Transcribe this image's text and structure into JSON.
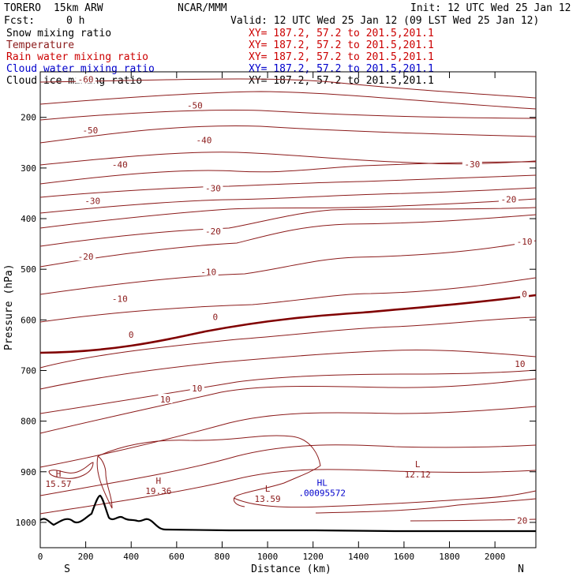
{
  "header": {
    "model": "TORERO",
    "resolution": "15km ARW",
    "org": "NCAR/MMM",
    "init": "Init: 12 UTC Wed 25 Jan 12",
    "fcst_label": "Fcst:",
    "fcst_value": "0 h",
    "valid": "Valid: 12 UTC Wed 25 Jan 12 (09 LST Wed 25 Jan 12)"
  },
  "legend": [
    {
      "name": "Snow mixing ratio",
      "color": "#000000",
      "xy": "XY= 187.2, 57.2 to 201.5,201.1"
    },
    {
      "name": "Temperature",
      "color": "#8b1a1a",
      "xy": "XY= 187.2, 57.2 to 201.5,201.1"
    },
    {
      "name": "Rain water mixing ratio",
      "color": "#cc0000",
      "xy": "XY= 187.2, 57.2 to 201.5,201.1"
    },
    {
      "name": "Cloud water mixing ratio",
      "color": "#0000cc",
      "xy": "XY= 187.2, 57.2 to 201.5,201.1"
    },
    {
      "name": "Cloud ice mixing ratio",
      "color": "#000000",
      "xy": "XY= 187.2, 57.2 to 201.5,201.1"
    }
  ],
  "chart_data": {
    "type": "contour-cross-section",
    "xlabel": "Distance (km)",
    "ylabel": "Pressure (hPa)",
    "xlim": [
      0,
      2180
    ],
    "ylim": [
      1050,
      110
    ],
    "xticks": [
      0,
      200,
      400,
      600,
      800,
      1000,
      1200,
      1400,
      1600,
      1800,
      2000
    ],
    "yticks": [
      200,
      300,
      400,
      500,
      600,
      700,
      800,
      900,
      1000
    ],
    "x_end_labels": {
      "left": "S",
      "right": "N"
    },
    "contour_labels": [
      {
        "text": "-60",
        "x": 200,
        "p": 125
      },
      {
        "text": "-50",
        "x": 680,
        "p": 176
      },
      {
        "text": "-50",
        "x": 220,
        "p": 225
      },
      {
        "text": "-40",
        "x": 720,
        "p": 245
      },
      {
        "text": "-40",
        "x": 350,
        "p": 293
      },
      {
        "text": "-30",
        "x": 760,
        "p": 340
      },
      {
        "text": "-30",
        "x": 230,
        "p": 365
      },
      {
        "text": "-30",
        "x": 1900,
        "p": 292
      },
      {
        "text": "-20",
        "x": 760,
        "p": 425
      },
      {
        "text": "-20",
        "x": 200,
        "p": 475
      },
      {
        "text": "-20",
        "x": 2060,
        "p": 362
      },
      {
        "text": "-10",
        "x": 740,
        "p": 505
      },
      {
        "text": "-10",
        "x": 350,
        "p": 558
      },
      {
        "text": "-10",
        "x": 2130,
        "p": 445
      },
      {
        "text": "0",
        "x": 770,
        "p": 594
      },
      {
        "text": "0",
        "x": 400,
        "p": 629
      },
      {
        "text": "0",
        "x": 2130,
        "p": 549
      },
      {
        "text": "10",
        "x": 690,
        "p": 735
      },
      {
        "text": "10",
        "x": 550,
        "p": 757
      },
      {
        "text": "10",
        "x": 2110,
        "p": 687
      },
      {
        "text": "20",
        "x": 2120,
        "p": 996
      }
    ],
    "markers": [
      {
        "type": "H",
        "value": "15.57",
        "x": 80,
        "p": 910,
        "color": "#8b1a1a"
      },
      {
        "type": "H",
        "value": "19.36",
        "x": 520,
        "p": 924,
        "color": "#8b1a1a"
      },
      {
        "type": "L",
        "value": "13.59",
        "x": 1000,
        "p": 939,
        "color": "#8b1a1a"
      },
      {
        "type": "L",
        "value": "12.12",
        "x": 1660,
        "p": 891,
        "color": "#8b1a1a"
      },
      {
        "type": "HL",
        "value": ".00095572",
        "x": 1240,
        "p": 928,
        "color": "#0000cc"
      }
    ],
    "isotherms_C": [
      -60,
      -50,
      -40,
      -30,
      -20,
      -10,
      0,
      10,
      20
    ],
    "highlighted_isotherm": 0
  }
}
